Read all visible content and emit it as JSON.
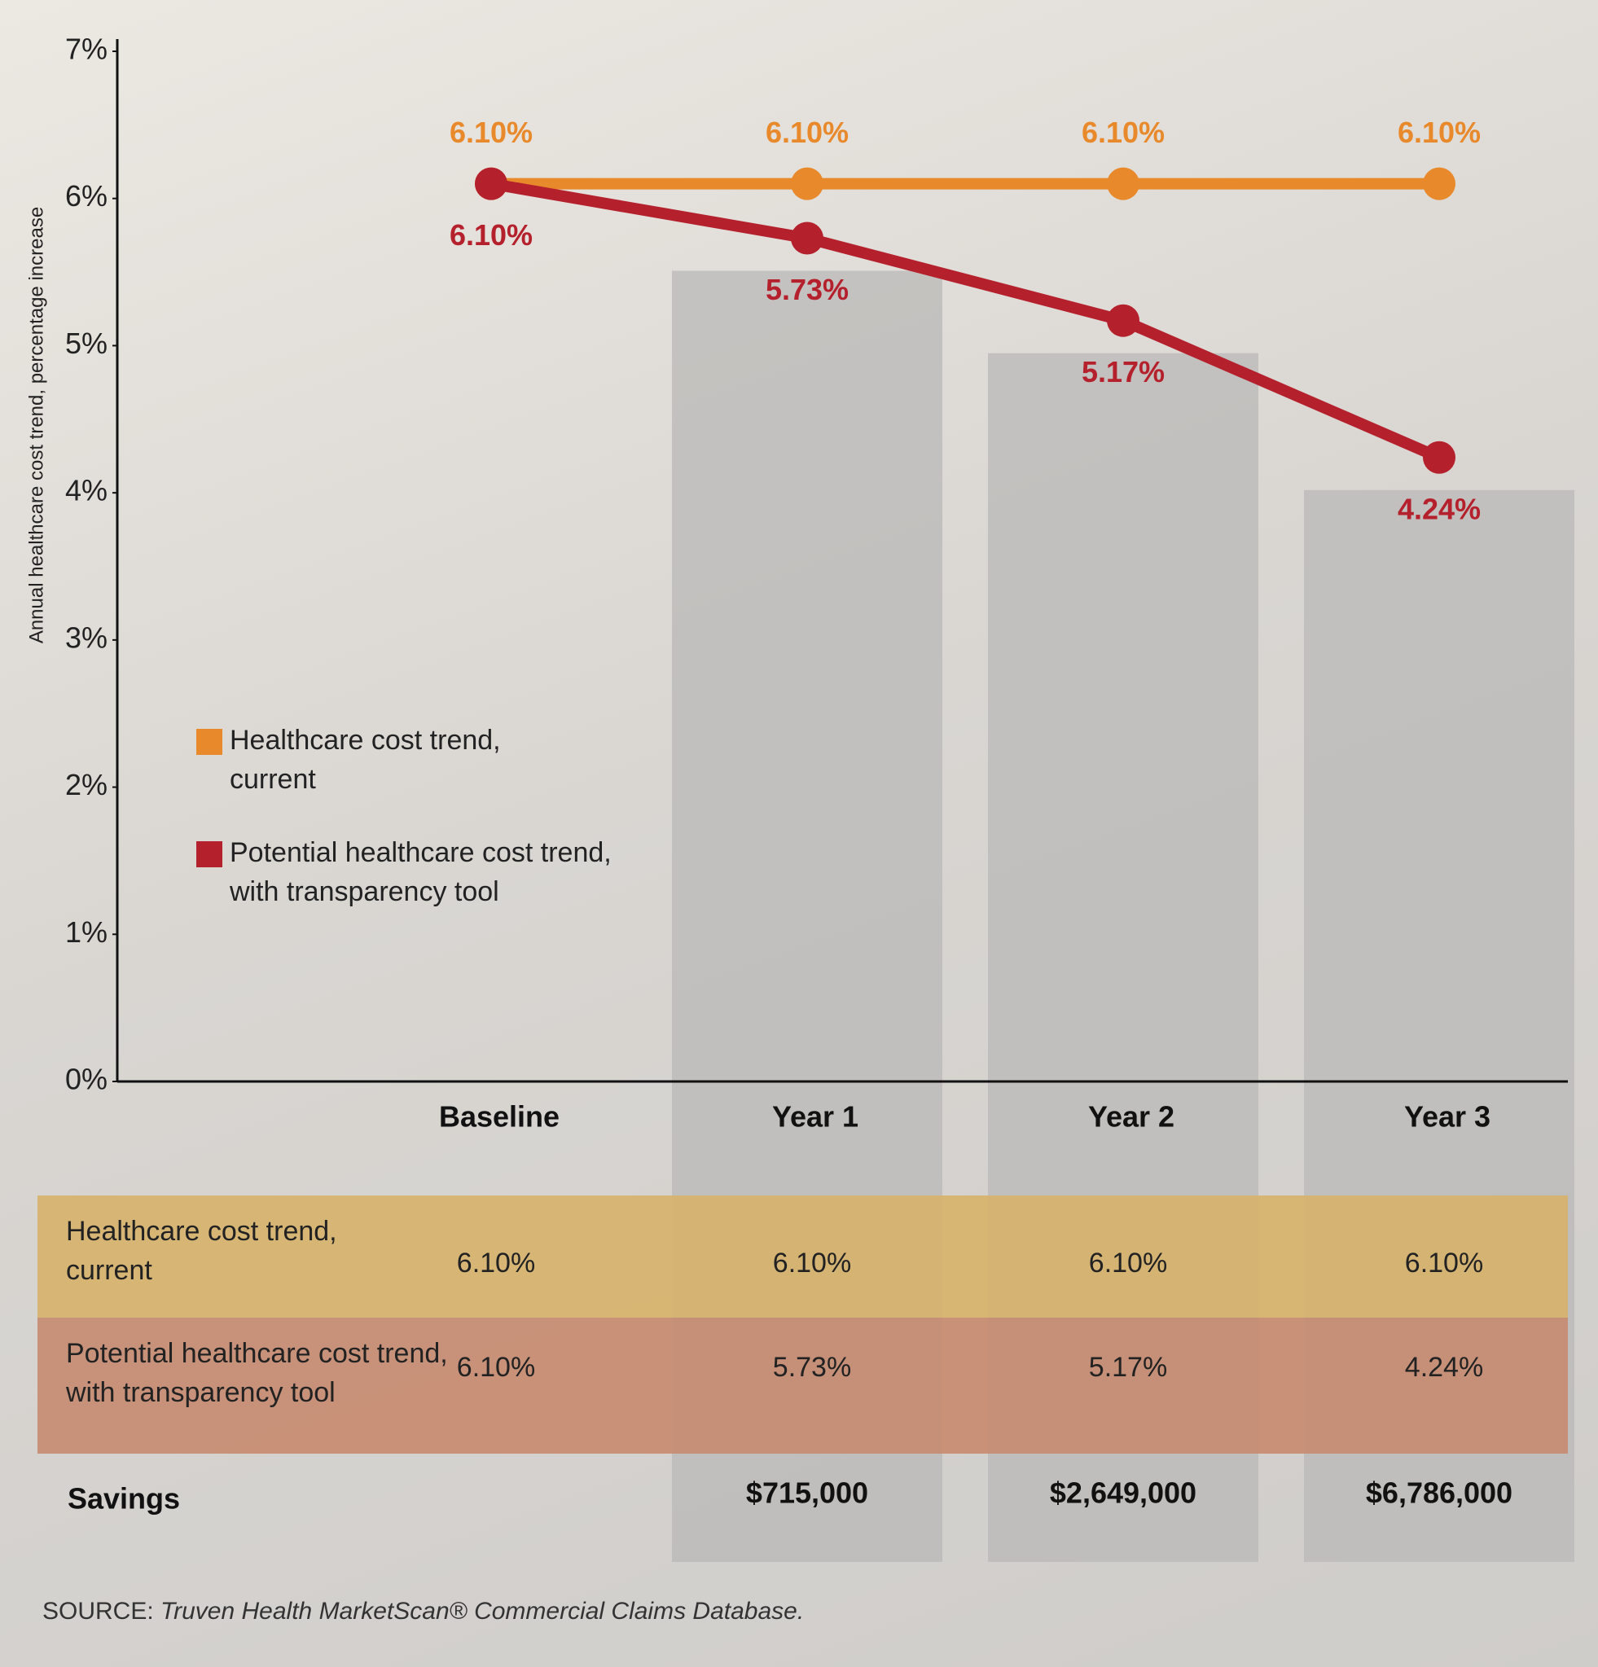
{
  "chart_data": {
    "type": "line",
    "y_label": "Annual healthcare cost trend, percentage increase",
    "categories": [
      "Baseline",
      "Year 1",
      "Year 2",
      "Year 3"
    ],
    "series": [
      {
        "name": "Healthcare cost trend, current",
        "color": "#e8892b",
        "values": [
          6.1,
          6.1,
          6.1,
          6.1
        ],
        "value_labels": [
          "6.10%",
          "6.10%",
          "6.10%",
          "6.10%"
        ]
      },
      {
        "name": "Potential healthcare cost trend, with transparency tool",
        "color": "#b5202d",
        "values": [
          6.1,
          5.73,
          5.17,
          4.24
        ],
        "value_labels": [
          "6.10%",
          "5.73%",
          "5.17%",
          "4.24%"
        ]
      }
    ],
    "ylim": [
      0,
      7
    ],
    "yticks": [
      {
        "value": 0,
        "label": "0%"
      },
      {
        "value": 1,
        "label": "1%"
      },
      {
        "value": 2,
        "label": "2%"
      },
      {
        "value": 3,
        "label": "3%"
      },
      {
        "value": 4,
        "label": "4%"
      },
      {
        "value": 5,
        "label": "5%"
      },
      {
        "value": 6,
        "label": "6%"
      },
      {
        "value": 7,
        "label": "7%"
      }
    ],
    "legend": "middle-left"
  },
  "table": {
    "savings_label": "Savings",
    "savings": [
      "$715,000",
      "$2,649,000",
      "$6,786,000"
    ]
  },
  "source": {
    "label": "SOURCE:",
    "text": "Truven Health MarketScan® Commercial Claims Database."
  }
}
